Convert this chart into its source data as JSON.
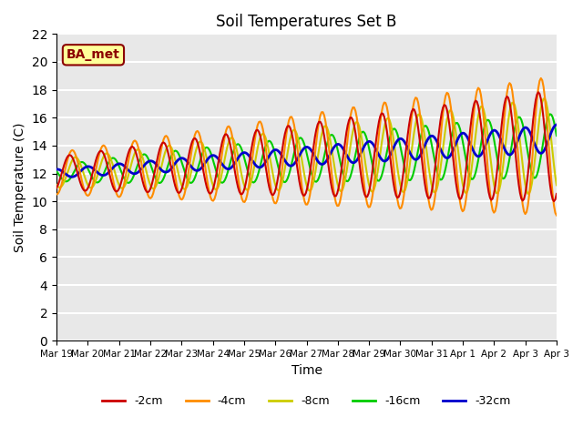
{
  "title": "Soil Temperatures Set B",
  "xlabel": "Time",
  "ylabel": "Soil Temperature (C)",
  "annotation": "BA_met",
  "annotation_color": "#8B0000",
  "annotation_bg": "#FFFF99",
  "ylim": [
    0,
    22
  ],
  "yticks": [
    0,
    2,
    4,
    6,
    8,
    10,
    12,
    14,
    16,
    18,
    20,
    22
  ],
  "series": {
    "neg2cm": {
      "label": "-2cm",
      "color": "#CC0000",
      "lw": 1.5
    },
    "neg4cm": {
      "label": "-4cm",
      "color": "#FF8C00",
      "lw": 1.5
    },
    "neg8cm": {
      "label": "-8cm",
      "color": "#CCCC00",
      "lw": 1.5
    },
    "neg16cm": {
      "label": "-16cm",
      "color": "#00CC00",
      "lw": 1.5
    },
    "neg32cm": {
      "label": "-32cm",
      "color": "#0000CC",
      "lw": 2.0
    }
  },
  "bg_color": "#E8E8E8",
  "grid_color": "#FFFFFF",
  "x_labels": [
    "Mar 19",
    "Mar 20",
    "Mar 21",
    "Mar 22",
    "Mar 23",
    "Mar 24",
    "Mar 25",
    "Mar 26",
    "Mar 27",
    "Mar 28",
    "Mar 29",
    "Mar 30",
    "Mar 31",
    "Apr 1",
    "Apr 2",
    "Apr 3",
    "Apr 3"
  ]
}
